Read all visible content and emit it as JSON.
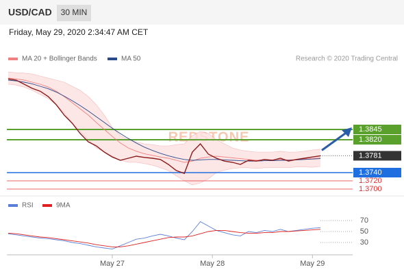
{
  "header": {
    "symbol": "USD/CAD",
    "interval": "30 MIN",
    "timestamp": "Friday, May 29, 2020 2:34:47 AM CET",
    "credit": "Research © 2020 Trading Central",
    "watermark": "REDSTONE"
  },
  "chart_data": [
    {
      "type": "line",
      "ylim": [
        1.3685,
        1.3985
      ],
      "xlim": [
        0,
        39
      ],
      "price": {
        "color": "#8b1a1a",
        "values": [
          1.3968,
          1.3965,
          1.3955,
          1.3945,
          1.3938,
          1.3925,
          1.3905,
          1.388,
          1.386,
          1.3835,
          1.3815,
          1.3805,
          1.379,
          1.3778,
          1.377,
          1.3775,
          1.378,
          1.3777,
          1.3775,
          1.3772,
          1.376,
          1.3745,
          1.3738,
          1.379,
          1.381,
          1.3785,
          1.3775,
          1.3768,
          1.3765,
          1.376,
          1.377,
          1.3768,
          1.3772,
          1.377,
          1.3775,
          1.3768,
          1.3772,
          1.3775,
          1.3778,
          1.3781
        ]
      },
      "series": [
        {
          "name": "MA 20 + Bollinger Bands",
          "color": "#f08080",
          "band_color": "#fde0e0",
          "values": [
            1.397,
            1.3968,
            1.3965,
            1.396,
            1.3955,
            1.3948,
            1.3938,
            1.3925,
            1.391,
            1.3895,
            1.388,
            1.3862,
            1.3845,
            1.3828,
            1.3812,
            1.38,
            1.3792,
            1.3786,
            1.3782,
            1.3778,
            1.3775,
            1.377,
            1.3765,
            1.3768,
            1.3775,
            1.3778,
            1.378,
            1.3778,
            1.3776,
            1.3774,
            1.3772,
            1.377,
            1.3771,
            1.3771,
            1.3772,
            1.3771,
            1.3772,
            1.3773,
            1.3774,
            1.3776
          ],
          "upper": [
            1.3985,
            1.3983,
            1.3982,
            1.398,
            1.3975,
            1.397,
            1.3965,
            1.396,
            1.395,
            1.394,
            1.3925,
            1.3905,
            1.388,
            1.385,
            1.383,
            1.382,
            1.3815,
            1.381,
            1.3808,
            1.3805,
            1.3805,
            1.3808,
            1.381,
            1.383,
            1.384,
            1.3835,
            1.382,
            1.381,
            1.38,
            1.3795,
            1.3792,
            1.379,
            1.379,
            1.379,
            1.3792,
            1.379,
            1.379,
            1.3792,
            1.3795,
            1.3797
          ],
          "lower": [
            1.3955,
            1.3953,
            1.3948,
            1.394,
            1.393,
            1.392,
            1.3905,
            1.3885,
            1.386,
            1.384,
            1.382,
            1.38,
            1.379,
            1.378,
            1.377,
            1.3765,
            1.3765,
            1.3762,
            1.3758,
            1.3752,
            1.3745,
            1.3732,
            1.372,
            1.371,
            1.3715,
            1.3725,
            1.374,
            1.3746,
            1.375,
            1.3752,
            1.3752,
            1.375,
            1.3752,
            1.3752,
            1.3752,
            1.3752,
            1.3754,
            1.3754,
            1.3753,
            1.3755
          ]
        },
        {
          "name": "MA 50",
          "color": "#2b4a8c",
          "values": [
            1.3965,
            1.3963,
            1.396,
            1.3956,
            1.395,
            1.3944,
            1.3936,
            1.3926,
            1.3915,
            1.3903,
            1.389,
            1.3876,
            1.3862,
            1.3848,
            1.3835,
            1.3823,
            1.3812,
            1.3802,
            1.3794,
            1.3787,
            1.3781,
            1.3776,
            1.3772,
            1.377,
            1.3771,
            1.3772,
            1.3772,
            1.3771,
            1.377,
            1.3769,
            1.3768,
            1.3768,
            1.3769,
            1.3769,
            1.377,
            1.377,
            1.3771,
            1.3772,
            1.3773,
            1.3774
          ]
        }
      ],
      "levels": [
        {
          "color": "#5aa02c",
          "style": "box",
          "prices": [
            1.3845,
            {
              "value": 1.382,
              "label": "1.3820"
            }
          ]
        },
        {
          "color": "#1f6fe0",
          "style": "box",
          "prices": [
            {
              "value": 1.374,
              "label": "1.3740"
            }
          ]
        },
        {
          "color": "#e03030",
          "style": "text",
          "prices": [
            {
              "value": 1.372,
              "label": "1.3720"
            },
            {
              "value": 1.37,
              "label": "1.3700"
            }
          ]
        },
        {
          "color": "#333333",
          "style": "last",
          "prices": [
            1.3781
          ]
        }
      ]
    },
    {
      "type": "line",
      "ylim": [
        8,
        78
      ],
      "xlim": [
        0,
        39
      ],
      "yticks": [
        30,
        50,
        70
      ],
      "xticks": [
        {
          "value": 13,
          "label": "May 27"
        },
        {
          "value": 25.5,
          "label": "May 28"
        },
        {
          "value": 38,
          "label": "May 29"
        }
      ],
      "series": [
        {
          "name": "RSI",
          "color": "#5b7fd6",
          "values": [
            46,
            44,
            42,
            40,
            38,
            37,
            35,
            33,
            30,
            28,
            25,
            22,
            20,
            18,
            24,
            30,
            36,
            38,
            42,
            45,
            42,
            38,
            35,
            50,
            68,
            60,
            52,
            48,
            44,
            42,
            50,
            48,
            52,
            50,
            54,
            50,
            52,
            54,
            56,
            57
          ]
        },
        {
          "name": "9MA",
          "color": "#e02020",
          "values": [
            47,
            46,
            44,
            42,
            40,
            39,
            37,
            35,
            33,
            31,
            29,
            26,
            24,
            22,
            22,
            24,
            27,
            30,
            33,
            36,
            39,
            40,
            40,
            42,
            46,
            50,
            52,
            52,
            50,
            48,
            47,
            47,
            48,
            48,
            50,
            50,
            51,
            52,
            53,
            54
          ]
        }
      ]
    }
  ]
}
